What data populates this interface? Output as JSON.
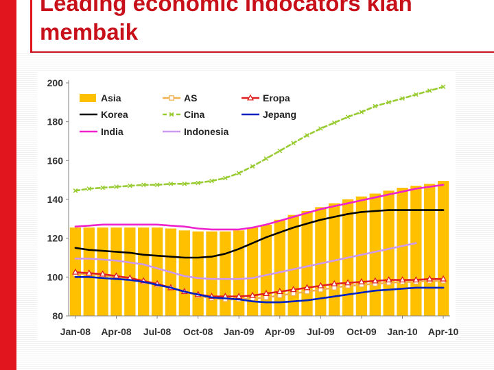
{
  "slide": {
    "title_line1": "Leading economic indocators kian",
    "title_line2": "membaik"
  },
  "colors": {
    "accent": "#e0151d",
    "title": "#c8101a"
  },
  "chart_data": {
    "type": "line",
    "title": "",
    "xlabel": "",
    "ylabel": "",
    "ylim": [
      80,
      200
    ],
    "yticks": [
      80,
      100,
      120,
      140,
      160,
      180,
      200
    ],
    "grid": false,
    "legend_placement": "top-left",
    "x": [
      "Jan-08",
      "Feb-08",
      "Mar-08",
      "Apr-08",
      "May-08",
      "Jun-08",
      "Jul-08",
      "Aug-08",
      "Sep-08",
      "Oct-08",
      "Nov-08",
      "Dec-08",
      "Jan-09",
      "Feb-09",
      "Mar-09",
      "Apr-09",
      "May-09",
      "Jun-09",
      "Jul-09",
      "Aug-09",
      "Sep-09",
      "Oct-09",
      "Nov-09",
      "Dec-09",
      "Jan-10",
      "Feb-10",
      "Mar-10",
      "Apr-10"
    ],
    "xtick_labels": [
      "Jan-08",
      "Apr-08",
      "Jul-08",
      "Oct-08",
      "Jan-09",
      "Apr-09",
      "Jul-09",
      "Oct-09",
      "Jan-10",
      "Apr-10"
    ],
    "series": [
      {
        "name": "Asia",
        "kind": "bar",
        "color": "#ffc000",
        "values": [
          125.5,
          125.5,
          125.5,
          125.5,
          125.5,
          125.5,
          125.5,
          125,
          124,
          123.5,
          123.5,
          123.5,
          124,
          125.5,
          127,
          129.5,
          132,
          134,
          136,
          138,
          140,
          141.5,
          143,
          144.5,
          146,
          147,
          148,
          149.5
        ]
      },
      {
        "name": "AS",
        "kind": "line",
        "color": "#f0b050",
        "marker": "square",
        "values": [
          101.5,
          101.5,
          101,
          100,
          99,
          97.5,
          96,
          94.5,
          92.5,
          90.5,
          89,
          88.5,
          88.5,
          89,
          89.5,
          90.5,
          91.5,
          92.5,
          93.5,
          94.5,
          95.5,
          96,
          96.5,
          97,
          97.5,
          97.5,
          98,
          98
        ]
      },
      {
        "name": "Eropa",
        "kind": "line",
        "color": "#e02020",
        "marker": "triangle",
        "values": [
          102.5,
          102,
          101.5,
          100.5,
          99.5,
          98,
          96.5,
          94.5,
          92.5,
          91,
          90,
          90,
          90,
          90.5,
          91.5,
          92.5,
          93.5,
          94.5,
          95.5,
          96.5,
          97,
          97.5,
          98,
          98.5,
          98.5,
          98.5,
          99,
          99
        ]
      },
      {
        "name": "Korea",
        "kind": "line",
        "color": "#000000",
        "values": [
          115,
          114,
          113.5,
          113,
          112.5,
          111.5,
          111,
          110.5,
          110,
          110,
          110.5,
          112,
          114.5,
          117.5,
          120.5,
          123,
          125.5,
          127.5,
          129.5,
          131,
          132.5,
          133.5,
          134,
          134.5,
          134.5,
          134.5,
          134.5,
          134.5
        ]
      },
      {
        "name": "Cina",
        "kind": "line",
        "color": "#99cc33",
        "dashed": true,
        "marker": "cross",
        "values": [
          144.5,
          145.5,
          146,
          146.5,
          147,
          147.5,
          147.5,
          148,
          148,
          148.5,
          149.5,
          151,
          153.5,
          157,
          161,
          165,
          169,
          173,
          176.5,
          179.5,
          182.5,
          185,
          188,
          190,
          192,
          194,
          196,
          198
        ]
      },
      {
        "name": "Jepang",
        "kind": "line",
        "color": "#0020c0",
        "values": [
          100,
          100,
          99.5,
          99,
          98.5,
          97.5,
          96,
          94.5,
          92.5,
          91,
          89.5,
          89,
          88.5,
          87.5,
          87,
          87,
          87.5,
          88,
          89,
          90,
          91,
          92,
          93,
          93.5,
          94,
          94.5,
          94.5,
          94.5
        ]
      },
      {
        "name": "India",
        "kind": "line",
        "color": "#ee22cc",
        "values": [
          126,
          126.5,
          127,
          127,
          127,
          127,
          127,
          126.5,
          126,
          125,
          124.5,
          124.5,
          124.5,
          125.5,
          127,
          129,
          131,
          133,
          135,
          136.5,
          138,
          139.5,
          141,
          142.5,
          144,
          145.5,
          146.5,
          147.5
        ]
      },
      {
        "name": "Indonesia",
        "kind": "line",
        "color": "#cc99ee",
        "values": [
          109.5,
          109.5,
          109,
          108.5,
          107.5,
          106.5,
          104.5,
          102.5,
          100.5,
          99.5,
          99,
          99,
          99,
          99.5,
          101,
          102.5,
          104,
          105.5,
          107,
          108.5,
          110,
          111.5,
          113,
          114.5,
          116,
          117.5,
          null,
          null
        ]
      }
    ]
  }
}
